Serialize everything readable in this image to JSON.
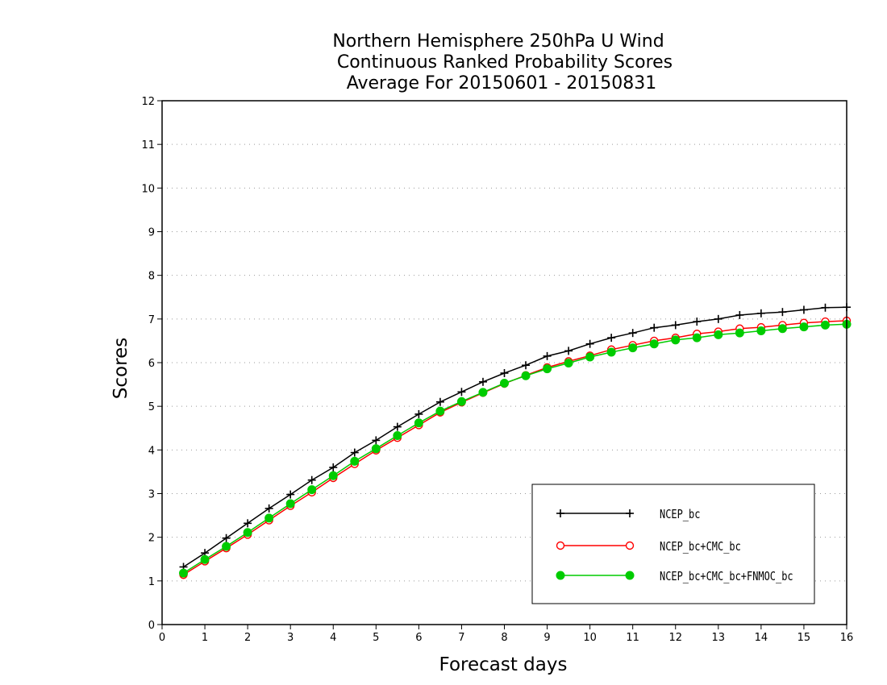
{
  "chart_data": {
    "type": "line",
    "title": [
      "Northern Hemisphere 250hPa U Wind",
      "Continuous Ranked Probability Scores",
      "Average For 20150601 - 20150831"
    ],
    "xlabel": "Forecast days",
    "ylabel": "Scores",
    "xlim": [
      0,
      16
    ],
    "ylim": [
      0,
      12
    ],
    "xticks": [
      "0",
      "1",
      "2",
      "3",
      "4",
      "5",
      "6",
      "7",
      "8",
      "9",
      "10",
      "11",
      "12",
      "13",
      "14",
      "15",
      "16"
    ],
    "yticks": [
      "0",
      "1",
      "2",
      "3",
      "4",
      "5",
      "6",
      "7",
      "8",
      "9",
      "10",
      "11",
      "12"
    ],
    "grid": "horizontal dotted",
    "legend_position": "bottom-right",
    "x": [
      0.5,
      1,
      1.5,
      2,
      2.5,
      3,
      3.5,
      4,
      4.5,
      5,
      5.5,
      6,
      6.5,
      7,
      7.5,
      8,
      8.5,
      9,
      9.5,
      10,
      10.5,
      11,
      11.5,
      12,
      12.5,
      13,
      13.5,
      14,
      14.5,
      15,
      15.5,
      16
    ],
    "series": [
      {
        "name": "NCEP_bc",
        "color": "#000000",
        "marker": "plus",
        "values": [
          1.32,
          1.64,
          1.98,
          2.32,
          2.66,
          2.98,
          3.31,
          3.6,
          3.94,
          4.22,
          4.53,
          4.82,
          5.1,
          5.33,
          5.56,
          5.76,
          5.94,
          6.15,
          6.27,
          6.43,
          6.57,
          6.68,
          6.8,
          6.86,
          6.94,
          7.0,
          7.09,
          7.13,
          7.16,
          7.21,
          7.26,
          7.27
        ]
      },
      {
        "name": "NCEP_bc+CMC_bc",
        "color": "#ff0000",
        "marker": "open-circle",
        "values": [
          1.14,
          1.45,
          1.75,
          2.06,
          2.39,
          2.72,
          3.03,
          3.36,
          3.68,
          3.99,
          4.28,
          4.57,
          4.86,
          5.09,
          5.31,
          5.52,
          5.71,
          5.89,
          6.03,
          6.16,
          6.3,
          6.4,
          6.5,
          6.57,
          6.66,
          6.71,
          6.78,
          6.81,
          6.86,
          6.91,
          6.94,
          6.96
        ]
      },
      {
        "name": "NCEP_bc+CMC_bc+FNMOC_bc",
        "color": "#00cc00",
        "marker": "filled-circle",
        "values": [
          1.18,
          1.49,
          1.79,
          2.11,
          2.44,
          2.77,
          3.09,
          3.41,
          3.74,
          4.03,
          4.33,
          4.62,
          4.89,
          5.11,
          5.32,
          5.53,
          5.7,
          5.86,
          5.99,
          6.13,
          6.24,
          6.34,
          6.43,
          6.52,
          6.57,
          6.64,
          6.68,
          6.73,
          6.78,
          6.82,
          6.86,
          6.88
        ]
      }
    ]
  }
}
